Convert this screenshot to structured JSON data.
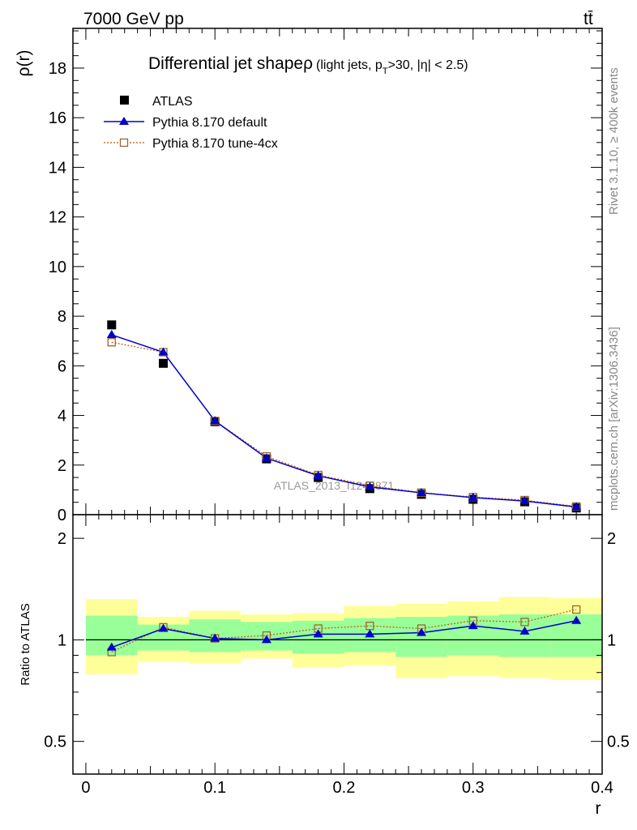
{
  "header": {
    "energy": "7000 GeV pp",
    "process": "tt̄"
  },
  "side_labels": {
    "rivet": "Rivet 3.1.10, ≥ 400k events",
    "mcplots": "mcplots.cern.ch [arXiv:1306.3436]"
  },
  "watermark": "ATLAS_2013_I1243871",
  "colors": {
    "data": "#000000",
    "default": "#0000cc",
    "tune": "#cc5500",
    "band_outer": "#ffff99",
    "band_inner": "#99ff99"
  },
  "chart_data": [
    {
      "type": "scatter",
      "title": "Differential jet shape",
      "title_symbol": "ρ",
      "title_cut_prefix": "(light jets, p",
      "title_cut_sub": "T",
      "title_cut_suffix": ">30, |η| < 2.5)",
      "ylabel": "ρ(r)",
      "xlim": [
        -0.01,
        0.4
      ],
      "ylim": [
        0,
        19.6
      ],
      "yticks": [
        0,
        2,
        4,
        6,
        8,
        10,
        12,
        14,
        16,
        18
      ],
      "ytick_labels": [
        "0",
        "2",
        "4",
        "6",
        "8",
        "10",
        "12",
        "14",
        "16",
        "18"
      ],
      "legend_position": "top-left",
      "x": [
        0.02,
        0.06,
        0.1,
        0.14,
        0.18,
        0.22,
        0.26,
        0.3,
        0.34,
        0.38
      ],
      "bin_edges": [
        0.0,
        0.04,
        0.08,
        0.12,
        0.16,
        0.2,
        0.24,
        0.28,
        0.32,
        0.36,
        0.4
      ],
      "series": [
        {
          "name": "ATLAS",
          "values": [
            7.65,
            6.1,
            3.75,
            2.25,
            1.5,
            1.05,
            0.82,
            0.62,
            0.52,
            0.27
          ]
        },
        {
          "name": "Pythia 8.170 default",
          "values": [
            7.25,
            6.55,
            3.78,
            2.28,
            1.57,
            1.12,
            0.88,
            0.69,
            0.55,
            0.31
          ]
        },
        {
          "name": "Pythia 8.170 tune-4cx",
          "values": [
            6.95,
            6.55,
            3.78,
            2.35,
            1.6,
            1.17,
            0.89,
            0.71,
            0.59,
            0.33
          ]
        }
      ]
    },
    {
      "type": "line",
      "ylabel": "Ratio to ATLAS",
      "xlabel": "r",
      "ylim": [
        0.4,
        2.35
      ],
      "log_y": true,
      "reference_line": 1,
      "yticks": [
        0.5,
        1,
        2
      ],
      "ytick_labels": [
        "0.5",
        "1",
        "2"
      ],
      "xticks": [
        0,
        0.1,
        0.2,
        0.3,
        0.4
      ],
      "xtick_labels": [
        "0",
        "0.1",
        "0.2",
        "0.3",
        "0.4"
      ],
      "x": [
        0.02,
        0.06,
        0.1,
        0.14,
        0.18,
        0.22,
        0.26,
        0.3,
        0.34,
        0.38
      ],
      "bands": {
        "outer_low": [
          0.79,
          0.86,
          0.85,
          0.88,
          0.83,
          0.84,
          0.77,
          0.78,
          0.77,
          0.76
        ],
        "outer_high": [
          1.32,
          1.17,
          1.22,
          1.19,
          1.2,
          1.26,
          1.28,
          1.3,
          1.34,
          1.33
        ],
        "inner_low": [
          0.9,
          0.93,
          0.92,
          0.93,
          0.91,
          0.92,
          0.89,
          0.9,
          0.89,
          0.89
        ],
        "inner_high": [
          1.18,
          1.11,
          1.15,
          1.13,
          1.14,
          1.16,
          1.17,
          1.18,
          1.19,
          1.19
        ]
      },
      "series": [
        {
          "name": "Pythia 8.170 default",
          "values": [
            0.95,
            1.08,
            1.01,
            1.0,
            1.04,
            1.04,
            1.05,
            1.1,
            1.06,
            1.14
          ]
        },
        {
          "name": "Pythia 8.170 tune-4cx",
          "values": [
            0.92,
            1.09,
            1.01,
            1.03,
            1.08,
            1.1,
            1.08,
            1.14,
            1.13,
            1.23
          ]
        }
      ]
    }
  ]
}
